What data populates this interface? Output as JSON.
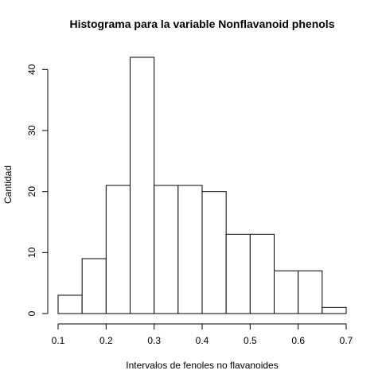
{
  "chart_data": {
    "type": "bar",
    "title": "Histograma para la variable Nonflavanoid phenols",
    "xlabel": "Intervalos de fenoles no flavanoides",
    "ylabel": "Cantidad",
    "bins": [
      {
        "from": 0.1,
        "to": 0.15,
        "count": 3
      },
      {
        "from": 0.15,
        "to": 0.2,
        "count": 9
      },
      {
        "from": 0.2,
        "to": 0.25,
        "count": 21
      },
      {
        "from": 0.25,
        "to": 0.3,
        "count": 42
      },
      {
        "from": 0.3,
        "to": 0.35,
        "count": 21
      },
      {
        "from": 0.35,
        "to": 0.4,
        "count": 21
      },
      {
        "from": 0.4,
        "to": 0.45,
        "count": 20
      },
      {
        "from": 0.45,
        "to": 0.5,
        "count": 13
      },
      {
        "from": 0.5,
        "to": 0.55,
        "count": 13
      },
      {
        "from": 0.55,
        "to": 0.6,
        "count": 7
      },
      {
        "from": 0.6,
        "to": 0.65,
        "count": 7
      },
      {
        "from": 0.65,
        "to": 0.7,
        "count": 1
      }
    ],
    "xlim": [
      0.1,
      0.7
    ],
    "ylim": [
      0,
      42
    ],
    "xticks": [
      "0.1",
      "0.2",
      "0.3",
      "0.4",
      "0.5",
      "0.6",
      "0.7"
    ],
    "yticks": [
      "0",
      "10",
      "20",
      "30",
      "40"
    ],
    "grid": false,
    "legend": "none"
  }
}
